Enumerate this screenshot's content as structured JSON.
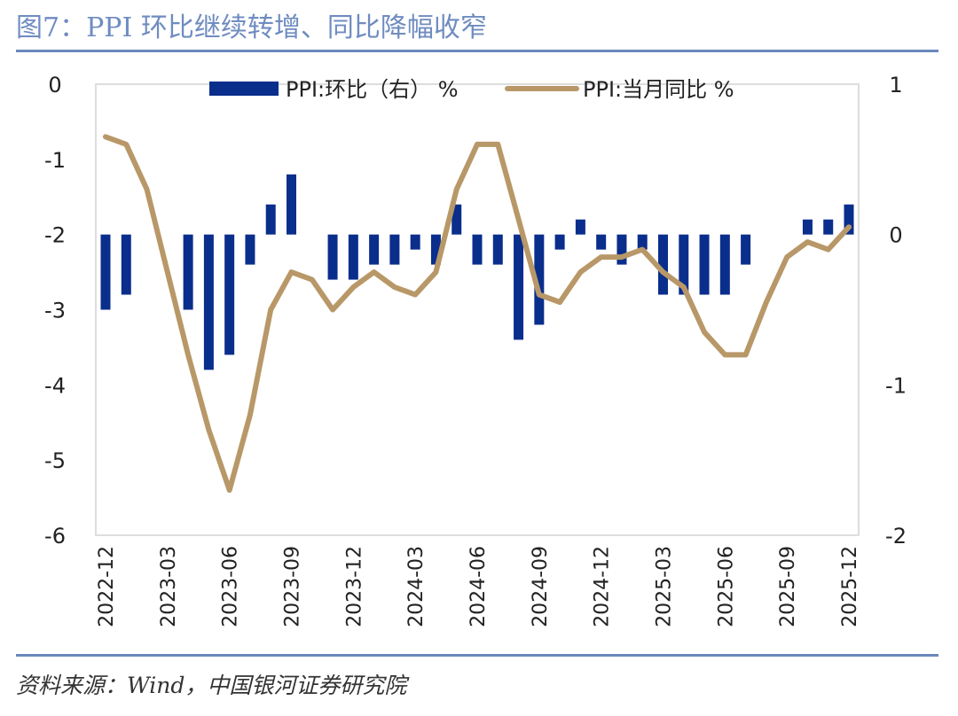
{
  "title": "图7：PPI 环比继续转增、同比降幅收窄",
  "source": "资料来源：Wind，中国银河证券研究院",
  "colors": {
    "bar": "#0a2e8c",
    "line": "#b89868",
    "title": "#6f8cc0",
    "rule": "#6b88bd"
  },
  "chart_data": {
    "type": "bar+line",
    "grid": false,
    "legend_position": "top",
    "legend": {
      "bar": "PPI:环比（右） %",
      "line": "PPI:当月同比 %"
    },
    "x": [
      "2022-12",
      "2023-01",
      "2023-02",
      "2023-03",
      "2023-04",
      "2023-05",
      "2023-06",
      "2023-07",
      "2023-08",
      "2023-09",
      "2023-10",
      "2023-11",
      "2023-12",
      "2024-01",
      "2024-02",
      "2024-03",
      "2024-04",
      "2024-05",
      "2024-06",
      "2024-07",
      "2024-08",
      "2024-09",
      "2024-10",
      "2024-11",
      "2024-12",
      "2025-01",
      "2025-02",
      "2025-03",
      "2025-04",
      "2025-05",
      "2025-06",
      "2025-07",
      "2025-08",
      "2025-09",
      "2025-10",
      "2025-11",
      "2025-12"
    ],
    "x_tick_labels": [
      "2022-12",
      "2023-03",
      "2023-06",
      "2023-09",
      "2023-12",
      "2024-03",
      "2024-06",
      "2024-09",
      "2024-12",
      "2025-03",
      "2025-06",
      "2025-09",
      "2025-12"
    ],
    "left_axis": {
      "ylim": [
        -6,
        0
      ],
      "ticks": [
        "0",
        "-1",
        "-2",
        "-3",
        "-4",
        "-5",
        "-6"
      ]
    },
    "right_axis": {
      "ylim": [
        -2,
        1
      ],
      "ticks": [
        "1",
        "0",
        "-1",
        "-2"
      ]
    },
    "series": [
      {
        "name": "PPI:环比（右） %",
        "type": "bar",
        "axis": "right",
        "values": [
          -0.5,
          -0.4,
          0,
          0,
          -0.5,
          -0.9,
          -0.8,
          -0.2,
          0.2,
          0.4,
          0,
          -0.3,
          -0.3,
          -0.2,
          -0.2,
          -0.1,
          -0.2,
          0.2,
          -0.2,
          -0.2,
          -0.7,
          -0.6,
          -0.1,
          0.1,
          -0.1,
          -0.2,
          -0.1,
          -0.4,
          -0.4,
          -0.4,
          -0.4,
          -0.2,
          0,
          0,
          0.1,
          0.1,
          0.2
        ]
      },
      {
        "name": "PPI:当月同比 %",
        "type": "line",
        "axis": "left",
        "values": [
          -0.7,
          -0.8,
          -1.4,
          -2.5,
          -3.6,
          -4.6,
          -5.4,
          -4.4,
          -3.0,
          -2.5,
          -2.6,
          -3.0,
          -2.7,
          -2.5,
          -2.7,
          -2.8,
          -2.5,
          -1.4,
          -0.8,
          -0.8,
          -1.8,
          -2.8,
          -2.9,
          -2.5,
          -2.3,
          -2.3,
          -2.2,
          -2.5,
          -2.7,
          -3.3,
          -3.6,
          -3.6,
          -2.9,
          -2.3,
          -2.1,
          -2.2,
          -1.9
        ]
      }
    ]
  }
}
